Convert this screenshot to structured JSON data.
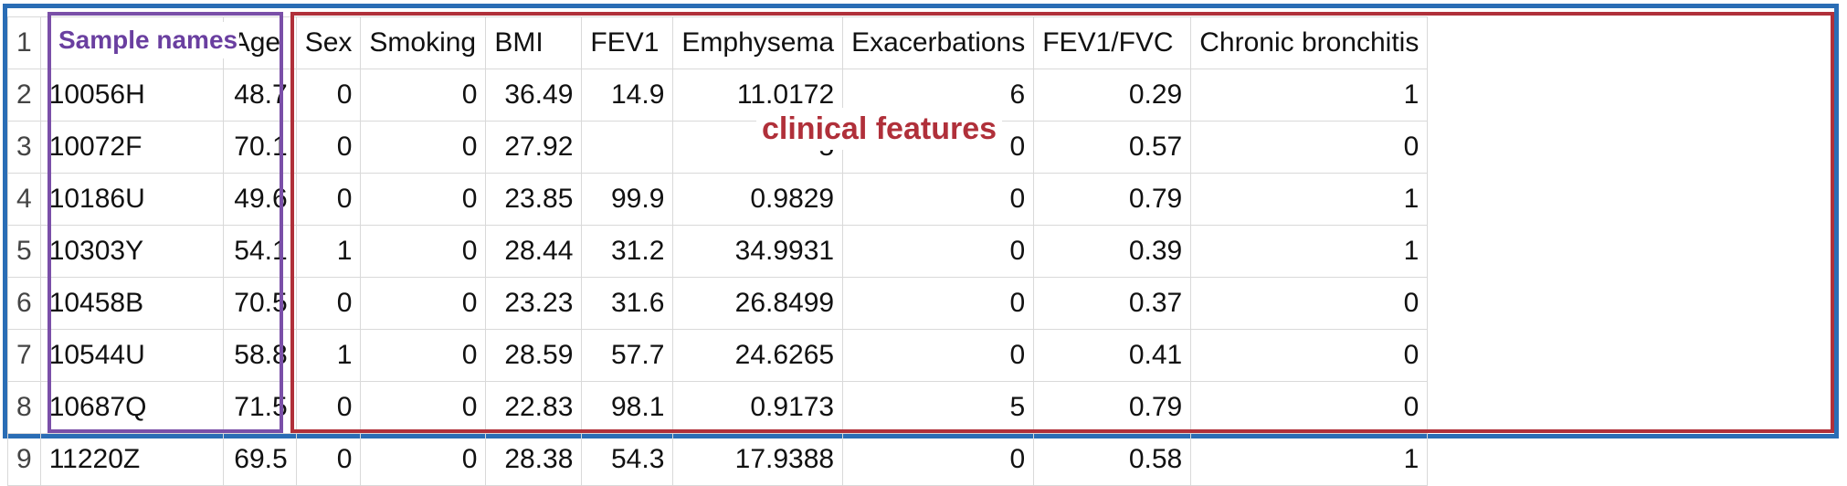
{
  "annotations": {
    "sample_names_label": "Sample names",
    "clinical_features_label": "clinical features"
  },
  "row_numbers": [
    "1",
    "2",
    "3",
    "4",
    "5",
    "6",
    "7",
    "8",
    "9"
  ],
  "columns": [
    "Age",
    "Sex",
    "Smoking",
    "BMI",
    "FEV1",
    "Emphysema",
    "Exacerbations",
    "FEV1/FVC",
    "Chronic bronchitis"
  ],
  "rows": [
    {
      "name": "10056H",
      "values": [
        "48.7",
        "0",
        "0",
        "36.49",
        "14.9",
        "11.0172",
        "6",
        "0.29",
        "1"
      ]
    },
    {
      "name": "10072F",
      "values": [
        "70.1",
        "0",
        "0",
        "27.92",
        "",
        "5",
        "0",
        "0.57",
        "0"
      ]
    },
    {
      "name": "10186U",
      "values": [
        "49.6",
        "0",
        "0",
        "23.85",
        "99.9",
        "0.9829",
        "0",
        "0.79",
        "1"
      ]
    },
    {
      "name": "10303Y",
      "values": [
        "54.1",
        "1",
        "0",
        "28.44",
        "31.2",
        "34.9931",
        "0",
        "0.39",
        "1"
      ]
    },
    {
      "name": "10458B",
      "values": [
        "70.5",
        "0",
        "0",
        "23.23",
        "31.6",
        "26.8499",
        "0",
        "0.37",
        "0"
      ]
    },
    {
      "name": "10544U",
      "values": [
        "58.8",
        "1",
        "0",
        "28.59",
        "57.7",
        "24.6265",
        "0",
        "0.41",
        "0"
      ]
    },
    {
      "name": "10687Q",
      "values": [
        "71.5",
        "0",
        "0",
        "22.83",
        "98.1",
        "0.9173",
        "5",
        "0.79",
        "0"
      ]
    },
    {
      "name": "11220Z",
      "values": [
        "69.5",
        "0",
        "0",
        "28.38",
        "54.3",
        "17.9388",
        "0",
        "0.58",
        "1"
      ]
    }
  ]
}
